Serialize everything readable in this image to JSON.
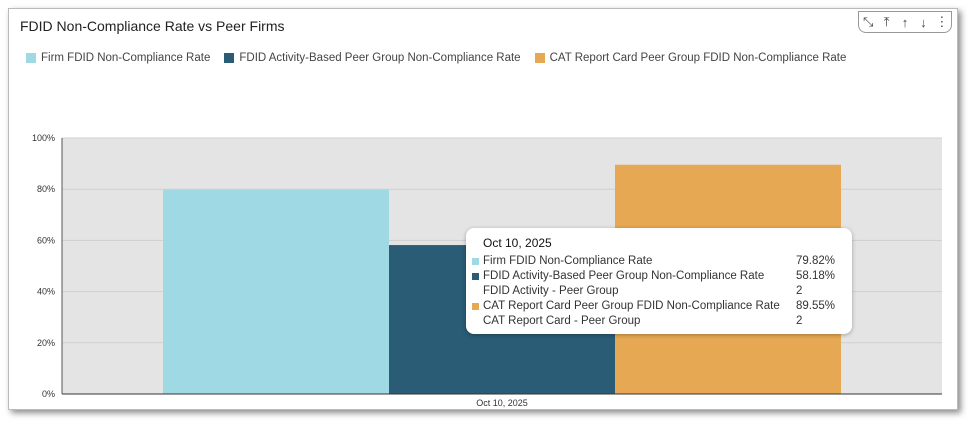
{
  "header": {
    "title": "FDID Non-Compliance Rate vs Peer Firms",
    "toolbar_icons": [
      "collapse-icon",
      "move-top-icon",
      "move-up-icon",
      "move-down-icon",
      "more-options-icon"
    ]
  },
  "chart_data": {
    "type": "bar",
    "title": "FDID Non-Compliance Rate vs Peer Firms",
    "categories": [
      "Oct 10, 2025"
    ],
    "series": [
      {
        "name": "Firm FDID Non-Compliance Rate",
        "values": [
          79.82
        ],
        "color": "#9fd9e4"
      },
      {
        "name": "FDID Activity-Based Peer Group Non-Compliance Rate",
        "values": [
          58.18
        ],
        "color": "#2a5c75"
      },
      {
        "name": "CAT Report Card Peer Group FDID Non-Compliance Rate",
        "values": [
          89.55
        ],
        "color": "#e6a852"
      }
    ],
    "yticks": [
      "0%",
      "20%",
      "40%",
      "60%",
      "80%",
      "100%"
    ],
    "ylim": [
      0,
      100
    ],
    "grid": true,
    "legend": "top-left",
    "xlabel": "",
    "ylabel": ""
  },
  "tooltip": {
    "date": "Oct 10, 2025",
    "rows": [
      {
        "label": "Firm FDID Non-Compliance Rate",
        "value": "79.82%",
        "color": "#9fd9e4"
      },
      {
        "label": "FDID Activity-Based Peer Group Non-Compliance Rate",
        "value": "58.18%",
        "color": "#2a5c75"
      },
      {
        "label": "FDID Activity - Peer Group",
        "value": "2",
        "color": ""
      },
      {
        "label": "CAT Report Card Peer Group FDID Non-Compliance Rate",
        "value": "89.55%",
        "color": "#e6a852"
      },
      {
        "label": "CAT Report Card - Peer Group",
        "value": "2",
        "color": ""
      }
    ]
  }
}
